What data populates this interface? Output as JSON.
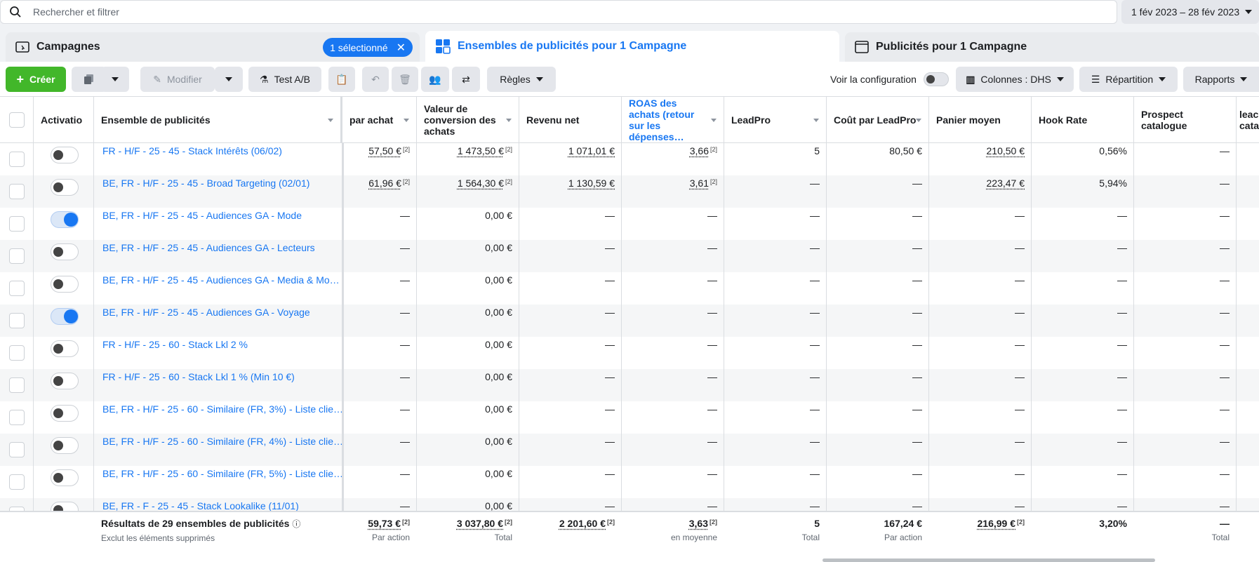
{
  "search": {
    "placeholder": "Rechercher et filtrer"
  },
  "date_range": "1 fév 2023 – 28 fév 2023",
  "tabs": {
    "campaigns": "Campagnes",
    "selected_badge": "1 sélectionné",
    "adsets": "Ensembles de publicités pour 1 Campagne",
    "ads": "Publicités pour 1 Campagne"
  },
  "toolbar": {
    "create": "Créer",
    "edit": "Modifier",
    "ab_test": "Test A/B",
    "rules": "Règles",
    "view_config": "Voir la configuration",
    "columns": "Colonnes : DHS",
    "breakdown": "Répartition",
    "reports": "Rapports"
  },
  "headers": {
    "activation": "Activatio",
    "adset": "Ensemble de publicités",
    "cost_per_purchase": "par achat",
    "conv_value": "Valeur de conversion des achats",
    "net_revenue": "Revenu net",
    "roas": "ROAS des achats (retour sur les dépenses…",
    "leadpro": "LeadPro",
    "cost_leadpro": "Coût par LeadPro",
    "avg_cart": "Panier moyen",
    "hook_rate": "Hook Rate",
    "prospect": "Prospect catalogue",
    "lead_cat": "leac cata"
  },
  "rows": [
    {
      "on": false,
      "name": "FR - H/F - 25 - 45 - Stack Intérêts (06/02)",
      "cpa": "57,50 €",
      "cpa_sup": "[2]",
      "conv": "1 473,50 €",
      "conv_sup": "[2]",
      "net": "1 071,01 €",
      "roas": "3,66",
      "roas_sup": "[2]",
      "lead": "5",
      "costlead": "80,50 €",
      "cart": "210,50 €",
      "hook": "0,56%",
      "prospect": "—"
    },
    {
      "on": false,
      "name": "BE, FR - H/F - 25 - 45 - Broad Targeting (02/01)",
      "cpa": "61,96 €",
      "cpa_sup": "[2]",
      "conv": "1 564,30 €",
      "conv_sup": "[2]",
      "net": "1 130,59 €",
      "roas": "3,61",
      "roas_sup": "[2]",
      "lead": "—",
      "costlead": "—",
      "cart": "223,47 €",
      "hook": "5,94%",
      "prospect": "—"
    },
    {
      "on": true,
      "name": "BE, FR - H/F - 25 - 45 - Audiences GA - Mode",
      "cpa": "—",
      "conv": "0,00 €",
      "net": "—",
      "roas": "—",
      "lead": "—",
      "costlead": "—",
      "cart": "—",
      "hook": "—",
      "prospect": "—"
    },
    {
      "on": false,
      "name": "BE, FR - H/F - 25 - 45 - Audiences GA - Lecteurs",
      "cpa": "—",
      "conv": "0,00 €",
      "net": "—",
      "roas": "—",
      "lead": "—",
      "costlead": "—",
      "cart": "—",
      "hook": "—",
      "prospect": "—"
    },
    {
      "on": false,
      "name": "BE, FR - H/F - 25 - 45 - Audiences GA - Media & Mo…",
      "cpa": "—",
      "conv": "0,00 €",
      "net": "—",
      "roas": "—",
      "lead": "—",
      "costlead": "—",
      "cart": "—",
      "hook": "—",
      "prospect": "—"
    },
    {
      "on": true,
      "name": "BE, FR - H/F - 25 - 45 - Audiences GA - Voyage",
      "cpa": "—",
      "conv": "0,00 €",
      "net": "—",
      "roas": "—",
      "lead": "—",
      "costlead": "—",
      "cart": "—",
      "hook": "—",
      "prospect": "—"
    },
    {
      "on": false,
      "name": "FR - H/F - 25 - 60 - Stack Lkl 2 %",
      "cpa": "—",
      "conv": "0,00 €",
      "net": "—",
      "roas": "—",
      "lead": "—",
      "costlead": "—",
      "cart": "—",
      "hook": "—",
      "prospect": "—"
    },
    {
      "on": false,
      "name": "FR - H/F - 25 - 60 - Stack Lkl 1 % (Min 10 €)",
      "cpa": "—",
      "conv": "0,00 €",
      "net": "—",
      "roas": "—",
      "lead": "—",
      "costlead": "—",
      "cart": "—",
      "hook": "—",
      "prospect": "—"
    },
    {
      "on": false,
      "name": "BE, FR - H/F - 25 - 60 - Similaire (FR, 3%) - Liste clie…",
      "cpa": "—",
      "conv": "0,00 €",
      "net": "—",
      "roas": "—",
      "lead": "—",
      "costlead": "—",
      "cart": "—",
      "hook": "—",
      "prospect": "—"
    },
    {
      "on": false,
      "name": "BE, FR - H/F - 25 - 60 - Similaire (FR, 4%) - Liste clie…",
      "cpa": "—",
      "conv": "0,00 €",
      "net": "—",
      "roas": "—",
      "lead": "—",
      "costlead": "—",
      "cart": "—",
      "hook": "—",
      "prospect": "—"
    },
    {
      "on": false,
      "name": "BE, FR - H/F - 25 - 60 - Similaire (FR, 5%) - Liste clie…",
      "cpa": "—",
      "conv": "0,00 €",
      "net": "—",
      "roas": "—",
      "lead": "—",
      "costlead": "—",
      "cart": "—",
      "hook": "—",
      "prospect": "—"
    },
    {
      "on": false,
      "name": "BE, FR - F - 25 - 45 - Stack Lookalike (11/01)",
      "cpa": "—",
      "conv": "0,00 €",
      "net": "—",
      "roas": "—",
      "lead": "—",
      "costlead": "—",
      "cart": "—",
      "hook": "—",
      "prospect": "—"
    }
  ],
  "footer": {
    "title": "Résultats de 29 ensembles de publicités",
    "subtitle": "Exclut les éléments supprimés",
    "cpa": "59,73 €",
    "cpa_sub": "Par action",
    "cpa_sup": "[2]",
    "conv": "3 037,80 €",
    "conv_sub": "Total",
    "conv_sup": "[2]",
    "net": "2 201,60 €",
    "net_sup": "[2]",
    "roas": "3,63",
    "roas_sub": "en moyenne",
    "roas_sup": "[2]",
    "lead": "5",
    "lead_sub": "Total",
    "costlead": "167,24 €",
    "costlead_sub": "Par action",
    "cart": "216,99 €",
    "cart_sup": "[2]",
    "hook": "3,20%",
    "prospect": "—",
    "prospect_sub": "Total"
  }
}
